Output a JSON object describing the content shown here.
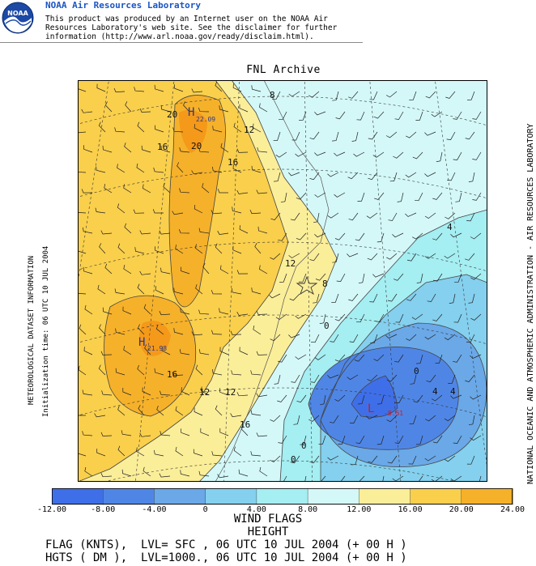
{
  "header": {
    "logo_text": "NOAA",
    "title": "NOAA Air Resources Laboratory",
    "disclaimer": [
      "This product was produced by an Internet user on the NOAA Air",
      "Resources Laboratory's web site.  See the disclaimer for further",
      "information (http://www.arl.noaa.gov/ready/disclaim.html)."
    ]
  },
  "map": {
    "title": "FNL Archive",
    "left_label_1": "METEOROLOGICAL DATASET INFORMATION",
    "left_label_2": "Initialization time: 06 UTC 10 JUL 2004",
    "right_label": "NATIONAL OCEANIC AND ATMOSPHERIC ADMINISTRATION - AIR RESOURCES LABORATORY",
    "contour_labels": [
      "8",
      "12",
      "16",
      "20",
      "16",
      "12",
      "8",
      "4",
      "0",
      "4",
      "8",
      "12",
      "16",
      "20",
      "12",
      "16",
      "0",
      "0",
      "4",
      "0",
      "8"
    ],
    "highs": [
      {
        "symbol": "H",
        "value": "22.09"
      },
      {
        "symbol": "H",
        "value": "21.98"
      }
    ],
    "low": {
      "symbol": "L",
      "value": "-8.51"
    },
    "colors": {
      "neg12": "#3f6fe8",
      "neg8": "#4f86e6",
      "neg4": "#6aa8e8",
      "zero": "#84d0ee",
      "pos4": "#a5eef2",
      "pos8": "#d4f8f8",
      "pos12": "#fbee99",
      "pos16": "#f9cf4c",
      "pos20": "#f6b12a",
      "pos24": "#f4991a"
    }
  },
  "colorbar": {
    "labels": [
      "-12.00",
      "-8.00",
      "-4.00",
      "0",
      "4.00",
      "8.00",
      "12.00",
      "16.00",
      "20.00",
      "24.00"
    ],
    "colors": [
      "#3f6fe8",
      "#4f86e6",
      "#6aa8e8",
      "#84d0ee",
      "#a5eef2",
      "#d4f8f8",
      "#fbee99",
      "#f9cf4c",
      "#f6b12a"
    ]
  },
  "legend": {
    "line1": "WIND FLAGS",
    "line2": "HEIGHT",
    "line3": "FLAG (KNTS),  LVL= SFC , 06 UTC 10 JUL 2004 (+ 00 H )",
    "line4": "HGTS ( DM ),  LVL=1000., 06 UTC 10 JUL 2004 (+ 00 H )"
  }
}
